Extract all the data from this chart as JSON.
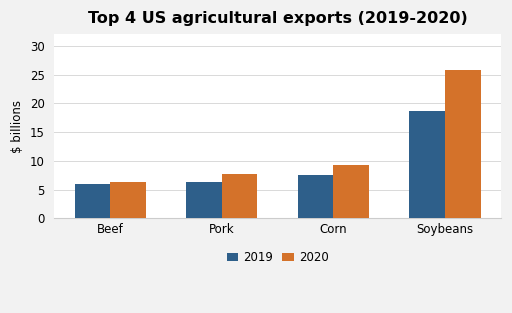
{
  "title": "Top 4 US agricultural exports (2019-2020)",
  "categories": [
    "Beef",
    "Pork",
    "Corn",
    "Soybeans"
  ],
  "values_2019": [
    6.0,
    6.4,
    7.6,
    18.6
  ],
  "values_2020": [
    6.4,
    7.7,
    9.3,
    25.7
  ],
  "color_2019": "#2e5f8a",
  "color_2020": "#d4722a",
  "ylabel": "$ billions",
  "ylim": [
    0,
    32
  ],
  "yticks": [
    0,
    5,
    10,
    15,
    20,
    25,
    30
  ],
  "legend_labels": [
    "2019",
    "2020"
  ],
  "bar_width": 0.32,
  "figure_facecolor": "#f2f2f2",
  "axes_facecolor": "#ffffff",
  "border_color": "#cccccc",
  "title_fontsize": 11.5,
  "axis_fontsize": 8.5,
  "legend_fontsize": 8.5,
  "grid_color": "#d9d9d9"
}
